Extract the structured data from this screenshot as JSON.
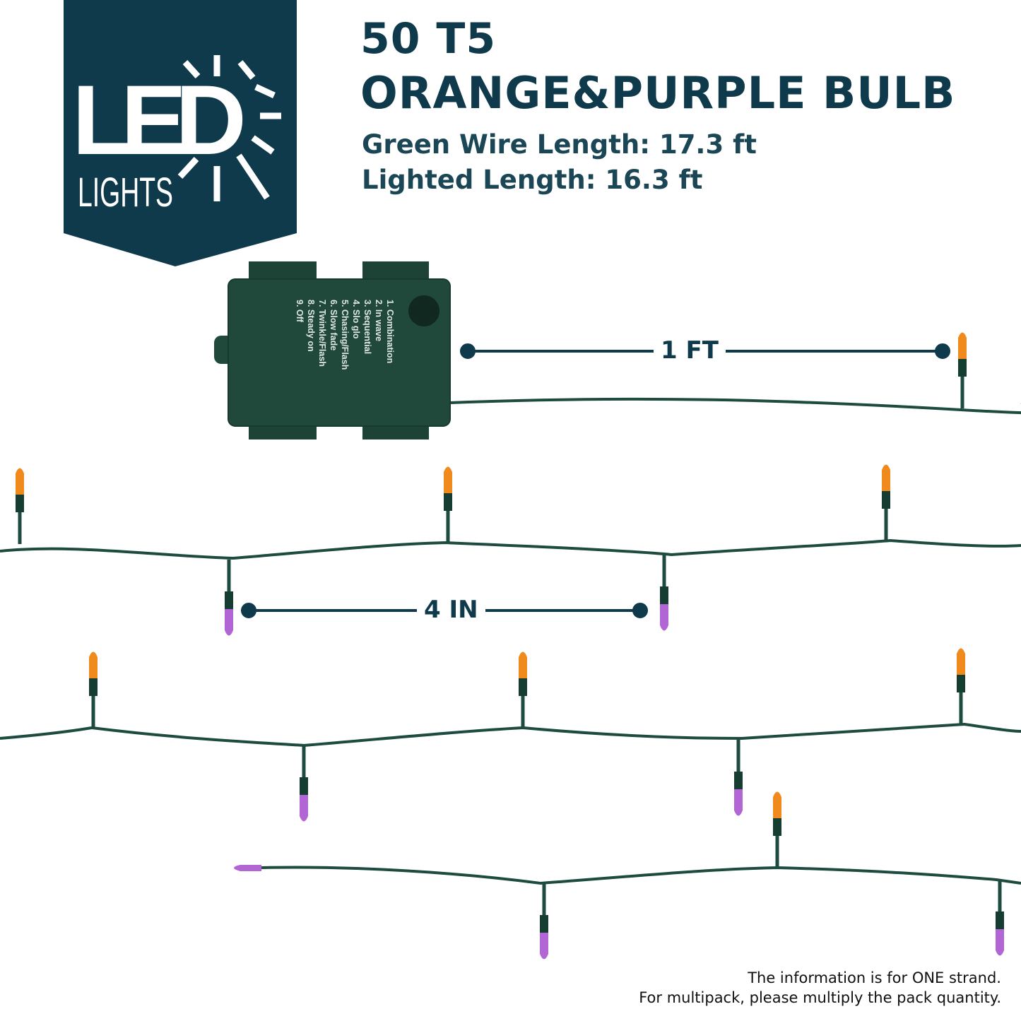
{
  "logo": {
    "big": "LED",
    "small": "LIGHTS",
    "color": "#0e3a4c"
  },
  "header": {
    "title_line1": "50 T5",
    "title_line2": "ORANGE&PURPLE BULB",
    "wire_length": "Green Wire Length: 17.3 ft",
    "lighted_length": "Lighted Length: 16.3 ft"
  },
  "battery_box": {
    "modes": [
      "1. Combination",
      "2. In wave",
      "3. Sequential",
      "4. Slo glo",
      "5. Chasing/Flash",
      "6. Slow fade",
      "7. Twinkle/Flash",
      "8. Steady on",
      "9. Off"
    ],
    "color": "#21493b"
  },
  "dimensions": {
    "lead": "1 FT",
    "spacing": "4 IN"
  },
  "colors": {
    "orange_bulb": "#f08a1c",
    "purple_bulb": "#b266d6",
    "wire": "#1e4b3f"
  },
  "footer": {
    "line1": "The information is for ONE strand.",
    "line2": "For multipack, please multiply the pack quantity."
  }
}
